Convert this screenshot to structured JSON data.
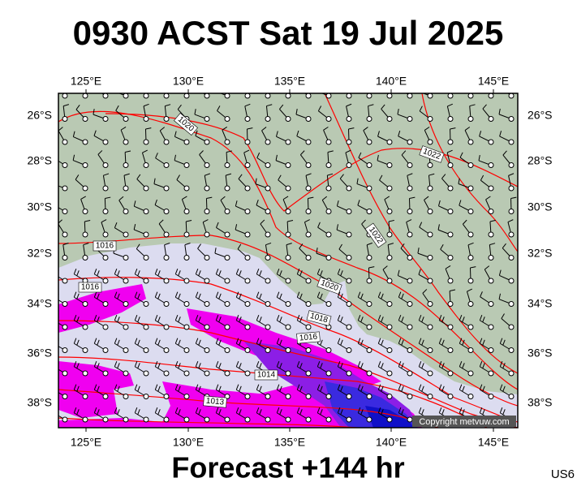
{
  "header": {
    "title": "0930 ACST Sat 19 Jul 2025"
  },
  "map": {
    "lon_labels": [
      "125°E",
      "130°E",
      "135°E",
      "140°E",
      "145°E"
    ],
    "lat_labels": [
      "26°S",
      "28°S",
      "30°S",
      "32°S",
      "34°S",
      "36°S",
      "38°S"
    ],
    "contour_labels": [
      "1020",
      "1022",
      "1022",
      "1016",
      "1016",
      "1020",
      "1018",
      "1016",
      "1014",
      "1013"
    ],
    "copyright": "Copyright metvuw.com"
  },
  "footer": {
    "forecast": "Forecast +144 hr",
    "region": "US6"
  }
}
